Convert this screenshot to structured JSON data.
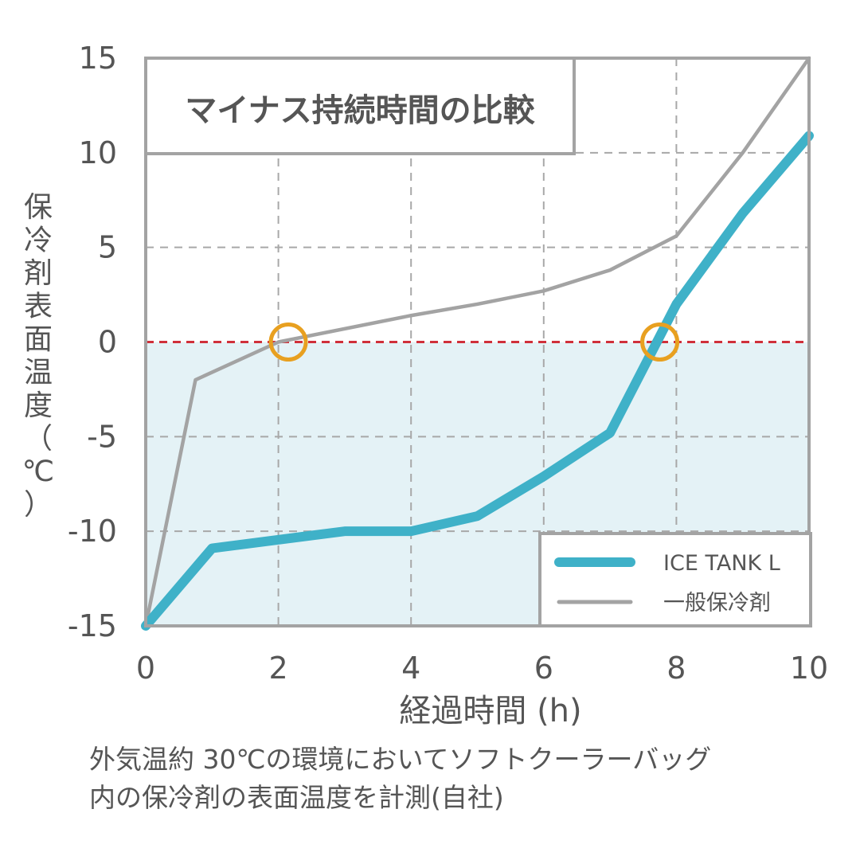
{
  "chart_data": {
    "type": "line",
    "title": "マイナス持続時間の比較",
    "xlabel": "経過時間 (h)",
    "ylabel_lines": [
      "保",
      "冷",
      "剤",
      "表",
      "面",
      "温",
      "度",
      "（",
      "℃",
      "）"
    ],
    "xlim": [
      0,
      10
    ],
    "ylim": [
      -15,
      15
    ],
    "x_ticks": [
      "0",
      "2",
      "4",
      "6",
      "8",
      "10"
    ],
    "y_ticks": [
      "15",
      "10",
      "5",
      "0",
      "-5",
      "-10",
      "-15"
    ],
    "grid": true,
    "shaded_region": {
      "from": -15,
      "to": 0,
      "color": "#e4f2f6"
    },
    "reference_line": {
      "y": 0,
      "color": "#d0303a",
      "style": "dashed"
    },
    "legend_position": "bottom-right",
    "series": [
      {
        "name": "ICE TANK L",
        "color": "#3fb1c8",
        "x": [
          0,
          1,
          3,
          4,
          5,
          6,
          7,
          8,
          9,
          10
        ],
        "y": [
          -15,
          -10.9,
          -10,
          -10,
          -9.2,
          -7.1,
          -4.8,
          2.0,
          6.8,
          10.9
        ]
      },
      {
        "name": "一般保冷剤",
        "color": "#a3a3a3",
        "x": [
          0,
          0.75,
          2,
          4,
          5,
          6,
          7,
          8,
          9,
          10
        ],
        "y": [
          -15,
          -2,
          0,
          1.4,
          2.0,
          2.7,
          3.8,
          5.6,
          10,
          15
        ]
      }
    ],
    "markers": [
      {
        "x": 2.15,
        "y": 0,
        "color": "#e8a020"
      },
      {
        "x": 7.75,
        "y": 0,
        "color": "#e8a020"
      }
    ]
  },
  "caption": {
    "line1": "外気温約 30℃の環境においてソフトクーラーバッグ",
    "line2": "内の保冷剤の表面温度を計測(自社)"
  }
}
